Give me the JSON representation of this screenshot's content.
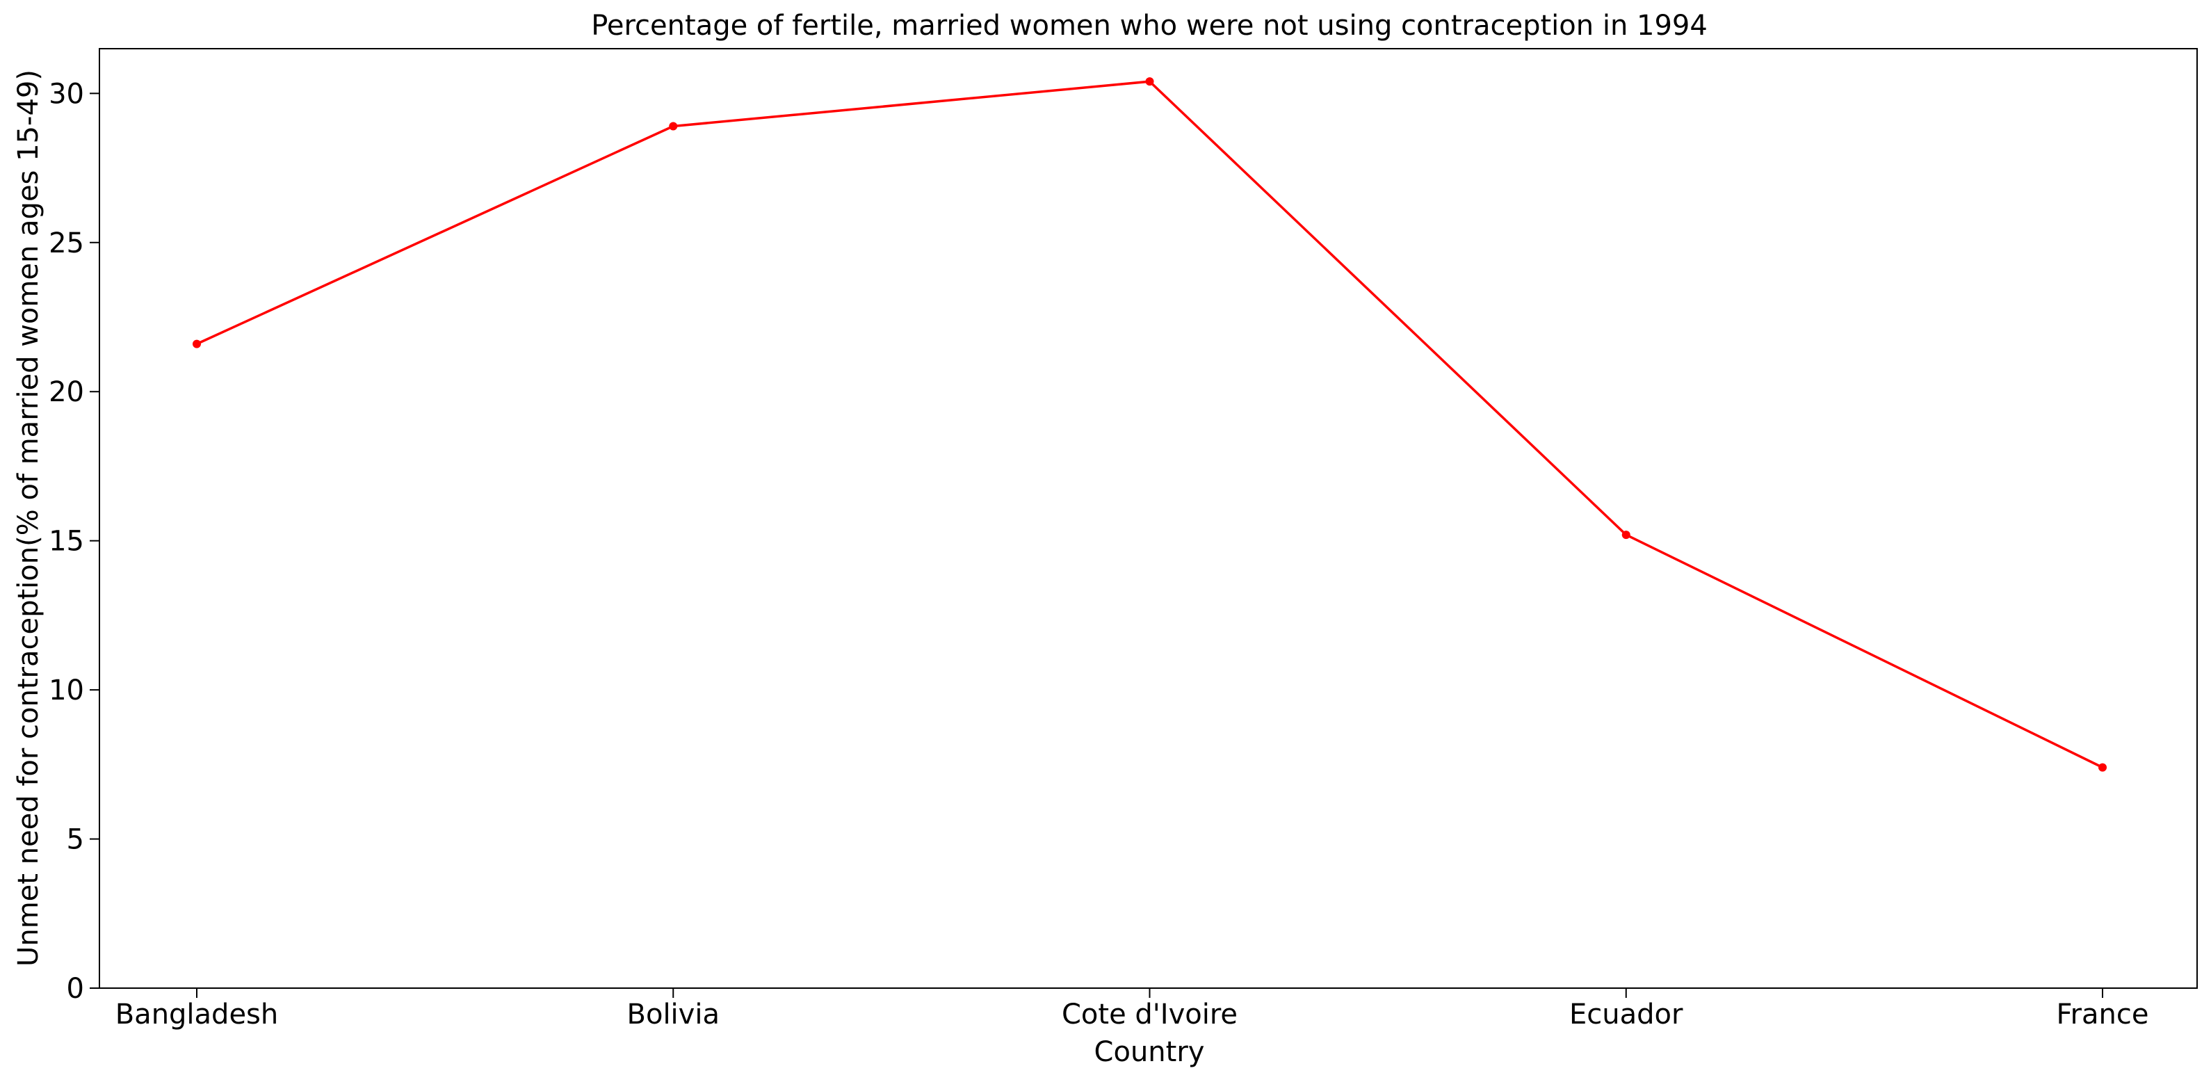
{
  "chart_data": {
    "type": "line",
    "title": "Percentage of fertile, married women who were not using contraception in 1994",
    "xlabel": "Country",
    "ylabel": "Unmet need for contraception(% of married women ages 15-49)",
    "categories": [
      "Bangladesh",
      "Bolivia",
      "Cote d'Ivoire",
      "Ecuador",
      "France"
    ],
    "series": [
      {
        "values": [
          21.6,
          28.9,
          30.4,
          15.2,
          7.4
        ],
        "color": "#ff0000",
        "marker": "circle"
      }
    ],
    "ylim": [
      0,
      31.5
    ],
    "yticks": [
      0,
      5,
      10,
      15,
      20,
      25,
      30
    ],
    "grid": false,
    "legend": "none"
  }
}
